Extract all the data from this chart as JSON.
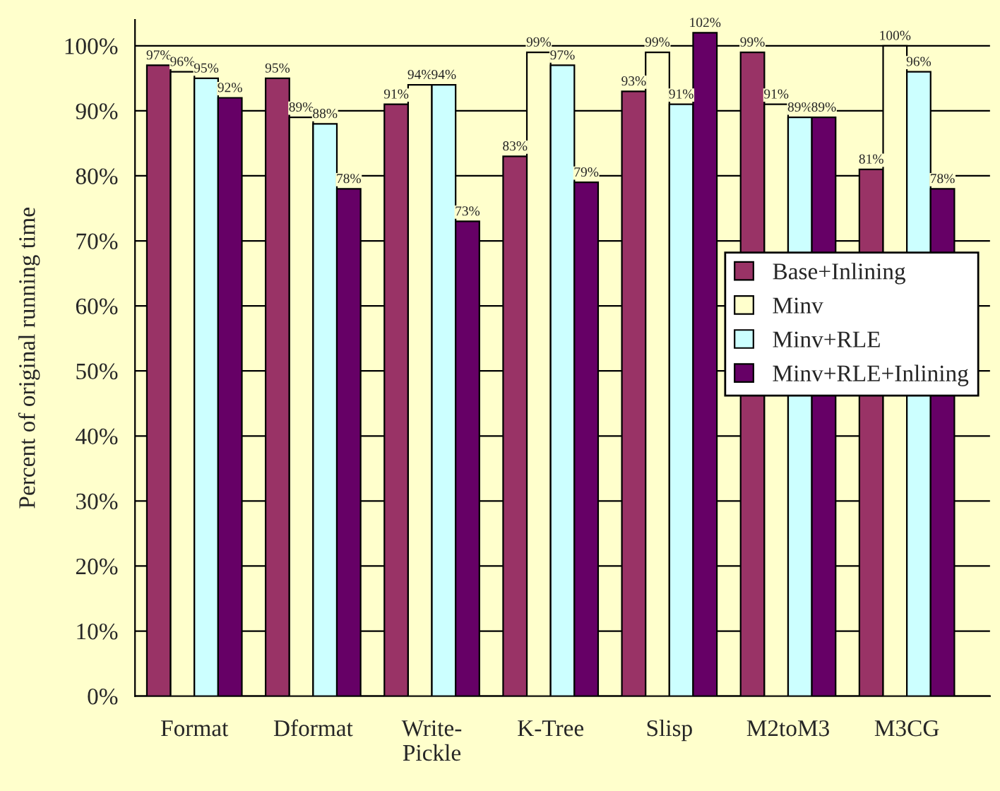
{
  "chart_data": {
    "type": "bar",
    "ylabel": "Percent of original running time",
    "categories": [
      "Format",
      "Dformat",
      "Write-\nPickle",
      "K-Tree",
      "Slisp",
      "M2toM3",
      "M3CG"
    ],
    "series": [
      {
        "name": "Base+Inlining",
        "color": "#993366",
        "values": [
          97,
          95,
          91,
          83,
          93,
          99,
          81
        ]
      },
      {
        "name": "Minv",
        "color": "#ffffcc",
        "values": [
          96,
          89,
          94,
          99,
          99,
          91,
          100
        ]
      },
      {
        "name": "Minv+RLE",
        "color": "#ccffff",
        "values": [
          95,
          88,
          94,
          97,
          91,
          89,
          96
        ]
      },
      {
        "name": "Minv+RLE+Inlining",
        "color": "#660066",
        "values": [
          92,
          78,
          73,
          79,
          102,
          89,
          78
        ]
      }
    ],
    "ylim": [
      0,
      104
    ],
    "yticks": [
      {
        "value": 0,
        "label": "0%"
      },
      {
        "value": 10,
        "label": "10%"
      },
      {
        "value": 20,
        "label": "20%"
      },
      {
        "value": 30,
        "label": "30%"
      },
      {
        "value": 40,
        "label": "40%"
      },
      {
        "value": 50,
        "label": "50%"
      },
      {
        "value": 60,
        "label": "60%"
      },
      {
        "value": 70,
        "label": "70%"
      },
      {
        "value": 80,
        "label": "80%"
      },
      {
        "value": 90,
        "label": "90%"
      },
      {
        "value": 100,
        "label": "100%"
      }
    ],
    "value_labels": [
      [
        "97%",
        "95%",
        "91%",
        "83%",
        "93%",
        "99%",
        "81%"
      ],
      [
        "96%",
        "89%",
        "94%",
        "99%",
        "99%",
        "91%",
        "100%"
      ],
      [
        "95%",
        "88%",
        "94%",
        "97%",
        "91%",
        "89%",
        "96%"
      ],
      [
        "92%",
        "78%",
        "73%",
        "79%",
        "102%",
        "89%",
        "78%"
      ]
    ],
    "grid": "y",
    "legend": "right"
  }
}
